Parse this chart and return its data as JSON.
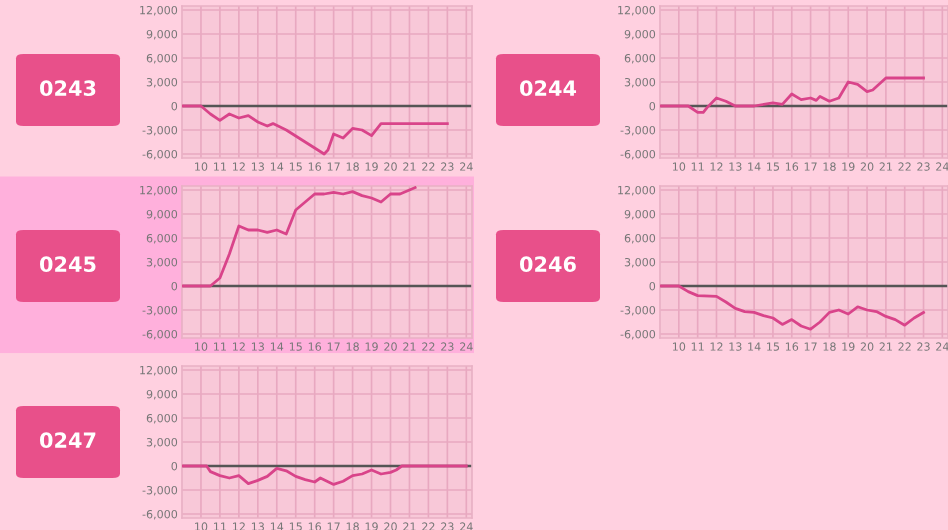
{
  "chart_data": [
    {
      "type": "line",
      "title": "0243",
      "xlim": [
        9,
        24.3
      ],
      "ylim": [
        -6500,
        12500
      ],
      "xticks": [
        10,
        11,
        12,
        13,
        14,
        15,
        16,
        17,
        18,
        19,
        20,
        21,
        22,
        23,
        24
      ],
      "yticks": [
        {
          "value": 12000,
          "label": "12,000"
        },
        {
          "value": 9000,
          "label": "9,000"
        },
        {
          "value": 6000,
          "label": "6,000"
        },
        {
          "value": 3000,
          "label": "3,000"
        },
        0,
        {
          "value": -3000,
          "label": "-3,000"
        },
        {
          "value": -6000,
          "label": "-6,000"
        }
      ],
      "grid": true,
      "ref_lines": [
        {
          "axis": "y",
          "value": 0,
          "color": "#555555"
        }
      ],
      "series": [
        {
          "color": "#d9448a",
          "x": [
            9,
            10,
            10.5,
            11,
            11.5,
            12,
            12.5,
            13,
            13.5,
            13.8,
            14.5,
            15.5,
            16.5,
            16.7,
            17,
            17.5,
            18,
            18.5,
            19,
            19.5,
            20,
            23
          ],
          "values": [
            0,
            0,
            -1000,
            -1800,
            -1000,
            -1500,
            -1200,
            -2000,
            -2500,
            -2200,
            -3000,
            -4500,
            -6000,
            -5500,
            -3500,
            -4000,
            -2800,
            -3000,
            -3700,
            -2200,
            -2200,
            -2200
          ]
        }
      ]
    },
    {
      "type": "line",
      "title": "0244",
      "xlim": [
        9,
        24.3
      ],
      "ylim": [
        -6500,
        12500
      ],
      "xticks": [
        10,
        11,
        12,
        13,
        14,
        15,
        16,
        17,
        18,
        19,
        20,
        21,
        22,
        23,
        24
      ],
      "yticks": [
        {
          "value": 12000,
          "label": "12,000"
        },
        {
          "value": 9000,
          "label": "9,000"
        },
        {
          "value": 6000,
          "label": "6,000"
        },
        {
          "value": 3000,
          "label": "3,000"
        },
        0,
        {
          "value": -3000,
          "label": "-3,000"
        },
        {
          "value": -6000,
          "label": "-6,000"
        }
      ],
      "grid": true,
      "ref_lines": [
        {
          "axis": "y",
          "value": 0,
          "color": "#555555"
        }
      ],
      "series": [
        {
          "color": "#d9448a",
          "x": [
            9,
            10.5,
            11,
            11.3,
            11.5,
            12,
            12.5,
            13,
            14,
            15,
            15.5,
            16,
            16.5,
            17,
            17.3,
            17.5,
            18,
            18.5,
            19,
            19.5,
            20,
            20.3,
            21,
            23
          ],
          "values": [
            0,
            0,
            -800,
            -800,
            -200,
            1000,
            600,
            0,
            0,
            400,
            200,
            1500,
            800,
            1000,
            700,
            1200,
            600,
            1000,
            3000,
            2700,
            1800,
            2000,
            3500,
            3500
          ]
        }
      ]
    },
    {
      "type": "line",
      "title": "0245",
      "xlim": [
        9,
        24.3
      ],
      "ylim": [
        -6500,
        12500
      ],
      "xticks": [
        10,
        11,
        12,
        13,
        14,
        15,
        16,
        17,
        18,
        19,
        20,
        21,
        22,
        23,
        24
      ],
      "yticks": [
        {
          "value": 12000,
          "label": "12,000"
        },
        {
          "value": 9000,
          "label": "9,000"
        },
        {
          "value": 6000,
          "label": "6,000"
        },
        {
          "value": 3000,
          "label": "3,000"
        },
        0,
        {
          "value": -3000,
          "label": "-3,000"
        },
        {
          "value": -6000,
          "label": "-6,000"
        }
      ],
      "grid": true,
      "ref_lines": [
        {
          "axis": "y",
          "value": 0,
          "color": "#555555"
        }
      ],
      "series": [
        {
          "color": "#d9448a",
          "x": [
            9,
            10.5,
            11,
            11.5,
            12,
            12.5,
            13,
            13.5,
            14,
            14.5,
            15,
            15.5,
            16,
            16.5,
            17,
            17.5,
            18,
            18.5,
            19,
            19.5,
            20,
            20.5,
            21,
            21.3
          ],
          "values": [
            0,
            0,
            1000,
            4000,
            7500,
            7000,
            7000,
            6700,
            7000,
            6500,
            9500,
            10500,
            11500,
            11500,
            11700,
            11500,
            11800,
            11300,
            11000,
            10500,
            11500,
            11500,
            12000,
            12300
          ]
        }
      ]
    },
    {
      "type": "line",
      "title": "0246",
      "xlim": [
        9,
        24.3
      ],
      "ylim": [
        -6500,
        12500
      ],
      "xticks": [
        10,
        11,
        12,
        13,
        14,
        15,
        16,
        17,
        18,
        19,
        20,
        21,
        22,
        23,
        24
      ],
      "yticks": [
        {
          "value": 12000,
          "label": "12,000"
        },
        {
          "value": 9000,
          "label": "9,000"
        },
        {
          "value": 6000,
          "label": "6,000"
        },
        {
          "value": 3000,
          "label": "3,000"
        },
        0,
        {
          "value": -3000,
          "label": "-3,000"
        },
        {
          "value": -6000,
          "label": "-6,000"
        }
      ],
      "grid": true,
      "ref_lines": [
        {
          "axis": "y",
          "value": 0,
          "color": "#555555"
        }
      ],
      "series": [
        {
          "color": "#d9448a",
          "x": [
            9,
            10,
            10.5,
            11,
            12,
            12.5,
            13,
            13.5,
            14,
            14.5,
            15,
            15.5,
            16,
            16.5,
            17,
            17.5,
            18,
            18.5,
            19,
            19.5,
            20,
            20.5,
            21,
            21.5,
            22,
            22.5,
            23
          ],
          "values": [
            0,
            0,
            -700,
            -1200,
            -1300,
            -2000,
            -2800,
            -3200,
            -3300,
            -3700,
            -4000,
            -4800,
            -4200,
            -5000,
            -5400,
            -4500,
            -3300,
            -3000,
            -3500,
            -2600,
            -3000,
            -3200,
            -3800,
            -4200,
            -4900,
            -4000,
            -3300
          ]
        }
      ]
    },
    {
      "type": "line",
      "title": "0247",
      "xlim": [
        9,
        24.3
      ],
      "ylim": [
        -6500,
        12500
      ],
      "xticks": [
        10,
        11,
        12,
        13,
        14,
        15,
        16,
        17,
        18,
        19,
        20,
        21,
        22,
        23,
        24
      ],
      "yticks": [
        {
          "value": 12000,
          "label": "12,000"
        },
        {
          "value": 9000,
          "label": "9,000"
        },
        {
          "value": 6000,
          "label": "6,000"
        },
        {
          "value": 3000,
          "label": "3,000"
        },
        0,
        {
          "value": -3000,
          "label": "-3,000"
        },
        {
          "value": -6000,
          "label": "-6,000"
        }
      ],
      "grid": true,
      "ref_lines": [
        {
          "axis": "y",
          "value": 0,
          "color": "#555555"
        }
      ],
      "series": [
        {
          "color": "#d9448a",
          "x": [
            9,
            10.3,
            10.5,
            11,
            11.5,
            12,
            12.5,
            13,
            13.5,
            14,
            14.5,
            15,
            15.5,
            16,
            16.3,
            17,
            17.5,
            18,
            18.5,
            19,
            19.5,
            20,
            20.3,
            20.6,
            24
          ],
          "values": [
            0,
            0,
            -700,
            -1200,
            -1500,
            -1200,
            -2200,
            -1800,
            -1300,
            -300,
            -600,
            -1300,
            -1700,
            -2000,
            -1500,
            -2300,
            -1900,
            -1200,
            -1000,
            -500,
            -1000,
            -800,
            -500,
            0,
            0
          ]
        }
      ]
    }
  ]
}
